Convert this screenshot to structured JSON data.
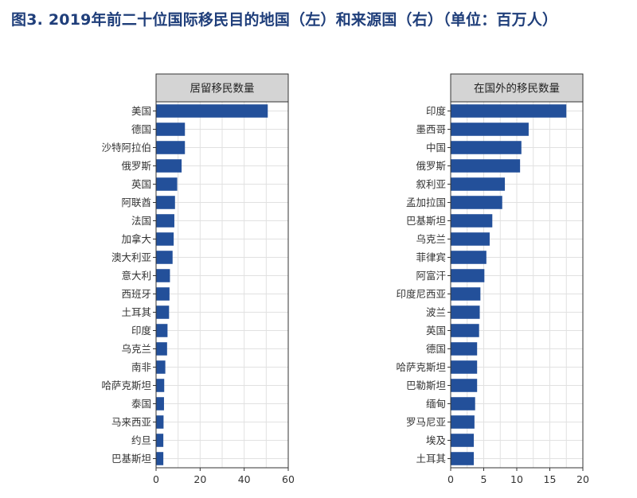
{
  "figure_title": "图3. 2019年前二十位国际移民目的地国（左）和来源国（右）（单位：百万人）",
  "colors": {
    "bar": "#23509a",
    "strip": "#d4d4d4",
    "grid": "#e1e1e1",
    "title": "#1f3e7a"
  },
  "chart_data": [
    {
      "type": "bar",
      "orientation": "horizontal",
      "title": "居留移民数量",
      "categories": [
        "美国",
        "德国",
        "沙特阿拉伯",
        "俄罗斯",
        "英国",
        "阿联酋",
        "法国",
        "加拿大",
        "澳大利亚",
        "意大利",
        "西班牙",
        "土耳其",
        "印度",
        "乌克兰",
        "南非",
        "哈萨克斯坦",
        "泰国",
        "马来西亚",
        "约旦",
        "巴基斯坦"
      ],
      "values": [
        50.7,
        13.1,
        13.1,
        11.6,
        9.6,
        8.6,
        8.3,
        8.0,
        7.5,
        6.3,
        6.1,
        5.9,
        5.2,
        5.0,
        4.2,
        3.7,
        3.6,
        3.4,
        3.3,
        3.3
      ],
      "xlim": [
        0,
        60
      ],
      "xticks": [
        0,
        20,
        40,
        60
      ],
      "grid": true
    },
    {
      "type": "bar",
      "orientation": "horizontal",
      "title": "在国外的移民数量",
      "categories": [
        "印度",
        "墨西哥",
        "中国",
        "俄罗斯",
        "叙利亚",
        "孟加拉国",
        "巴基斯坦",
        "乌克兰",
        "菲律宾",
        "阿富汗",
        "印度尼西亚",
        "波兰",
        "英国",
        "德国",
        "哈萨克斯坦",
        "巴勒斯坦",
        "缅甸",
        "罗马尼亚",
        "埃及",
        "土耳其"
      ],
      "values": [
        17.5,
        11.8,
        10.7,
        10.5,
        8.2,
        7.8,
        6.3,
        5.9,
        5.4,
        5.1,
        4.5,
        4.4,
        4.3,
        4.0,
        4.0,
        4.0,
        3.7,
        3.6,
        3.5,
        3.5
      ],
      "xlim": [
        0,
        20
      ],
      "xticks": [
        0,
        5,
        10,
        15,
        20
      ],
      "grid": true
    }
  ]
}
